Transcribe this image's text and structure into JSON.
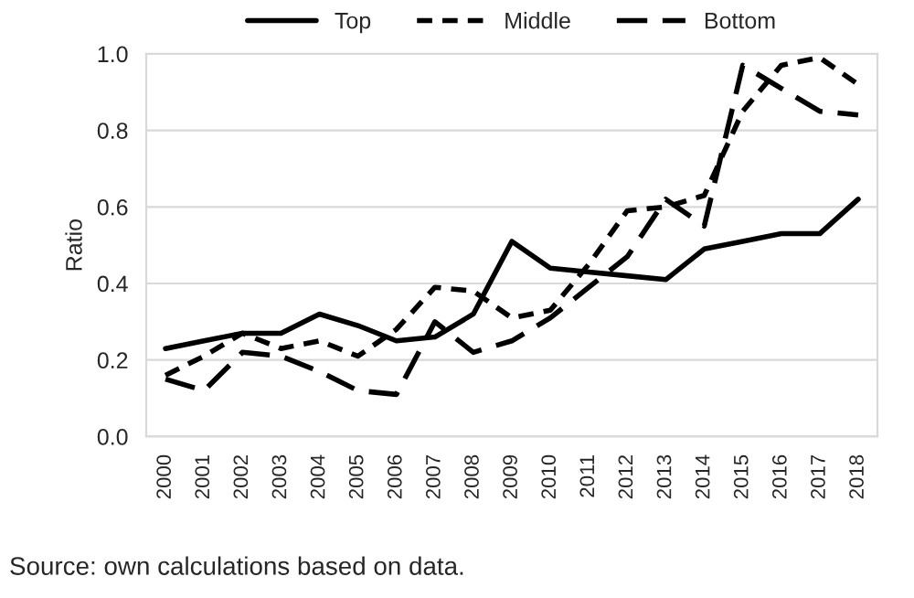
{
  "chart_data": {
    "type": "line",
    "ylabel": "Ratio",
    "categories": [
      "2000",
      "2001",
      "2002",
      "2003",
      "2004",
      "2005",
      "2006",
      "2007",
      "2008",
      "2009",
      "2010",
      "2011",
      "2012",
      "2013",
      "2014",
      "2015",
      "2016",
      "2017",
      "2018"
    ],
    "series": [
      {
        "name": "Top",
        "color": "#000000",
        "line_style": "solid",
        "values": [
          0.23,
          0.25,
          0.27,
          0.27,
          0.32,
          0.29,
          0.25,
          0.26,
          0.32,
          0.51,
          0.44,
          0.43,
          0.42,
          0.41,
          0.49,
          0.51,
          0.53,
          0.53,
          0.62
        ]
      },
      {
        "name": "Middle",
        "color": "#000000",
        "line_style": "dotted",
        "values": [
          0.16,
          0.21,
          0.27,
          0.23,
          0.25,
          0.21,
          0.28,
          0.39,
          0.38,
          0.31,
          0.33,
          0.45,
          0.59,
          0.6,
          0.63,
          0.85,
          0.97,
          0.99,
          0.92
        ]
      },
      {
        "name": "Bottom",
        "color": "#000000",
        "line_style": "dashed",
        "values": [
          0.15,
          0.12,
          0.22,
          0.21,
          0.17,
          0.12,
          0.11,
          0.3,
          0.22,
          0.25,
          0.31,
          0.39,
          0.47,
          0.62,
          0.55,
          0.97,
          0.91,
          0.85,
          0.84
        ]
      }
    ],
    "ylim": [
      0,
      1.0
    ],
    "yticks": [
      {
        "value": 0,
        "label": "0.0"
      },
      {
        "value": 0.2,
        "label": "0.2"
      },
      {
        "value": 0.4,
        "label": "0.4"
      },
      {
        "value": 0.6,
        "label": "0.6"
      },
      {
        "value": 0.8,
        "label": "0.8"
      },
      {
        "value": 1.0,
        "label": "1.0"
      }
    ],
    "grid": "y",
    "legend": "top",
    "marker": "none",
    "annotations": [
      "Source: own calculations based on data."
    ]
  }
}
